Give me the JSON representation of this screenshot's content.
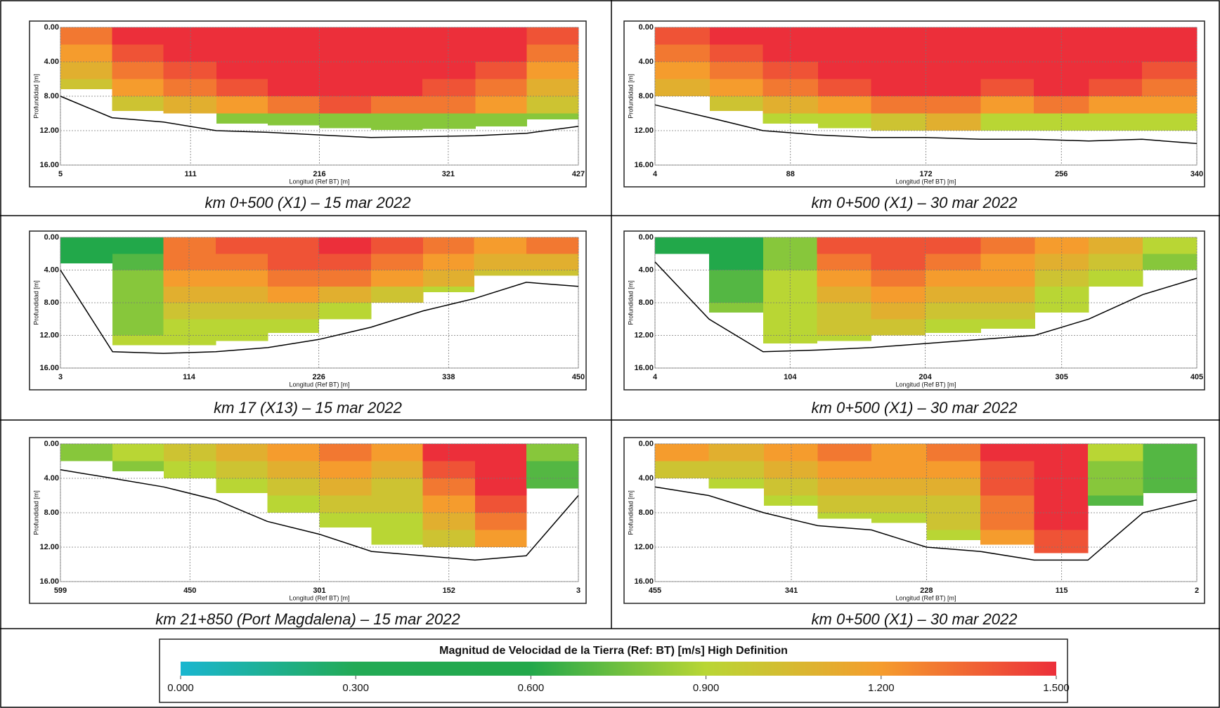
{
  "chart_data": [
    {
      "type": "heatmap",
      "caption": "km 0+500 (X1) – 15 mar 2022",
      "ylabel": "Profundidad [m]",
      "xlabel": "Longitud (Ref BT) [m]",
      "xlim": [
        5,
        427
      ],
      "xticks": [
        5,
        111,
        216,
        321,
        427
      ],
      "ylim": [
        0,
        16
      ],
      "invert_y": true,
      "yticks": [
        {
          "value": 0,
          "label": "0.00"
        },
        {
          "value": 4,
          "label": "4.00"
        },
        {
          "value": 8,
          "label": "8.00"
        },
        {
          "value": 12,
          "label": "12.00"
        },
        {
          "value": 16,
          "label": "16.00"
        }
      ],
      "x": [
        5,
        47,
        89,
        132,
        174,
        216,
        258,
        300,
        343,
        385,
        427
      ],
      "bed": [
        8,
        10.5,
        11,
        12,
        12.2,
        12.5,
        12.8,
        12.7,
        12.6,
        12.3,
        11.5
      ],
      "y_edges": [
        0,
        2,
        4,
        6,
        8,
        10,
        12,
        14
      ],
      "z": [
        [
          1.3,
          1.5,
          1.5,
          1.5,
          1.5,
          1.5,
          1.5,
          1.5,
          1.5,
          1.4
        ],
        [
          1.2,
          1.4,
          1.5,
          1.5,
          1.5,
          1.5,
          1.5,
          1.5,
          1.5,
          1.3
        ],
        [
          1.1,
          1.3,
          1.4,
          1.5,
          1.5,
          1.5,
          1.5,
          1.5,
          1.4,
          1.2
        ],
        [
          1.0,
          1.2,
          1.3,
          1.4,
          1.5,
          1.5,
          1.5,
          1.4,
          1.3,
          1.1
        ],
        [
          null,
          1.0,
          1.1,
          1.2,
          1.3,
          1.4,
          1.3,
          1.3,
          1.2,
          1.0
        ],
        [
          null,
          null,
          null,
          0.8,
          0.8,
          0.8,
          0.8,
          0.8,
          0.8,
          0.8
        ],
        [
          null,
          null,
          null,
          null,
          null,
          null,
          null,
          null,
          null,
          null
        ]
      ]
    },
    {
      "type": "heatmap",
      "caption": "km 0+500 (X1) – 30 mar 2022",
      "ylabel": "Profundidad [m]",
      "xlabel": "Longitud (Ref BT) [m]",
      "xlim": [
        4,
        340
      ],
      "xticks": [
        4,
        88,
        172,
        256,
        340
      ],
      "ylim": [
        0,
        16
      ],
      "invert_y": true,
      "yticks": [
        {
          "value": 0,
          "label": "0.00"
        },
        {
          "value": 4,
          "label": "4.00"
        },
        {
          "value": 8,
          "label": "8.00"
        },
        {
          "value": 12,
          "label": "12.00"
        },
        {
          "value": 16,
          "label": "16.00"
        }
      ],
      "x": [
        4,
        38,
        71,
        105,
        138,
        172,
        206,
        239,
        273,
        306,
        340
      ],
      "bed": [
        9,
        10.5,
        12,
        12.5,
        12.8,
        12.8,
        13,
        13,
        13.2,
        13,
        13.5
      ],
      "y_edges": [
        0,
        2,
        4,
        6,
        8,
        10,
        12,
        14
      ],
      "z": [
        [
          1.4,
          1.5,
          1.5,
          1.5,
          1.5,
          1.5,
          1.5,
          1.5,
          1.5,
          1.5
        ],
        [
          1.3,
          1.4,
          1.5,
          1.5,
          1.5,
          1.5,
          1.5,
          1.5,
          1.5,
          1.5
        ],
        [
          1.2,
          1.3,
          1.4,
          1.5,
          1.5,
          1.5,
          1.5,
          1.5,
          1.5,
          1.4
        ],
        [
          1.1,
          1.2,
          1.3,
          1.4,
          1.5,
          1.5,
          1.4,
          1.5,
          1.4,
          1.3
        ],
        [
          null,
          1.0,
          1.1,
          1.2,
          1.3,
          1.3,
          1.2,
          1.3,
          1.2,
          1.2
        ],
        [
          null,
          null,
          0.9,
          0.9,
          1.0,
          1.1,
          0.9,
          0.9,
          0.9,
          0.9
        ],
        [
          null,
          null,
          null,
          null,
          null,
          null,
          null,
          null,
          null,
          null
        ]
      ]
    },
    {
      "type": "heatmap",
      "caption": "km 17 (X13) – 15 mar 2022",
      "ylabel": "Profundidad [m]",
      "xlabel": "Longitud (Ref BT) [m]",
      "xlim": [
        3,
        450
      ],
      "xticks": [
        3,
        114,
        226,
        338,
        450
      ],
      "ylim": [
        0,
        16
      ],
      "invert_y": true,
      "yticks": [
        {
          "value": 0,
          "label": "0.00"
        },
        {
          "value": 4,
          "label": "4.00"
        },
        {
          "value": 8,
          "label": "8.00"
        },
        {
          "value": 12,
          "label": "12.00"
        },
        {
          "value": 16,
          "label": "16.00"
        }
      ],
      "x": [
        3,
        48,
        92,
        137,
        182,
        226,
        271,
        316,
        360,
        405,
        450
      ],
      "bed": [
        4,
        14,
        14.2,
        14,
        13.5,
        12.5,
        11,
        9,
        7.5,
        5.5,
        6
      ],
      "y_edges": [
        0,
        2,
        4,
        6,
        8,
        10,
        12,
        14
      ],
      "z": [
        [
          0.6,
          0.6,
          1.3,
          1.4,
          1.4,
          1.5,
          1.4,
          1.3,
          1.2,
          1.3
        ],
        [
          0.6,
          0.7,
          1.3,
          1.3,
          1.4,
          1.4,
          1.3,
          1.2,
          1.1,
          1.1
        ],
        [
          null,
          0.8,
          1.2,
          1.2,
          1.3,
          1.3,
          1.2,
          1.1,
          1.0,
          1.0
        ],
        [
          null,
          0.8,
          1.1,
          1.1,
          1.2,
          1.1,
          1.0,
          0.9,
          null,
          null
        ],
        [
          null,
          0.8,
          1.0,
          1.0,
          1.0,
          0.9,
          null,
          null,
          null,
          null
        ],
        [
          null,
          0.8,
          0.9,
          0.9,
          0.9,
          null,
          null,
          null,
          null,
          null
        ],
        [
          null,
          0.9,
          0.9,
          0.9,
          null,
          null,
          null,
          null,
          null,
          null
        ]
      ]
    },
    {
      "type": "heatmap",
      "caption": "km 0+500 (X1) – 30 mar 2022",
      "ylabel": "Profundidad [m]",
      "xlabel": "Longitud (Ref BT) [m]",
      "xlim": [
        4,
        405
      ],
      "xticks": [
        4,
        104,
        204,
        305,
        405
      ],
      "ylim": [
        0,
        16
      ],
      "invert_y": true,
      "yticks": [
        {
          "value": 0,
          "label": "0.00"
        },
        {
          "value": 4,
          "label": "4.00"
        },
        {
          "value": 8,
          "label": "8.00"
        },
        {
          "value": 12,
          "label": "12.00"
        },
        {
          "value": 16,
          "label": "16.00"
        }
      ],
      "x": [
        4,
        44,
        84,
        124,
        164,
        204,
        245,
        285,
        325,
        365,
        405
      ],
      "bed": [
        3,
        10,
        14,
        13.8,
        13.5,
        13,
        12.5,
        12,
        10,
        7,
        5
      ],
      "y_edges": [
        0,
        2,
        4,
        6,
        8,
        10,
        12,
        14
      ],
      "z": [
        [
          0.6,
          0.6,
          0.8,
          1.4,
          1.4,
          1.4,
          1.3,
          1.2,
          1.1,
          0.9
        ],
        [
          null,
          0.6,
          0.8,
          1.3,
          1.4,
          1.3,
          1.2,
          1.1,
          1.0,
          0.8
        ],
        [
          null,
          0.7,
          0.9,
          1.2,
          1.3,
          1.2,
          1.2,
          1.0,
          0.9,
          null
        ],
        [
          null,
          0.7,
          0.9,
          1.1,
          1.2,
          1.1,
          1.1,
          0.9,
          null,
          null
        ],
        [
          null,
          0.8,
          0.9,
          1.0,
          1.1,
          1.0,
          1.0,
          0.9,
          null,
          null
        ],
        [
          null,
          null,
          0.9,
          1.0,
          1.0,
          0.9,
          0.9,
          null,
          null,
          null
        ],
        [
          null,
          null,
          0.9,
          0.9,
          null,
          null,
          null,
          null,
          null,
          null
        ]
      ]
    },
    {
      "type": "heatmap",
      "caption": "km 21+850 (Port Magdalena) – 15 mar 2022",
      "ylabel": "Profundidad [m]",
      "xlabel": "Longitud (Ref BT) [m]",
      "xlim": [
        599,
        3
      ],
      "xticks": [
        599,
        450,
        301,
        152,
        3
      ],
      "ylim": [
        0,
        16
      ],
      "invert_y": true,
      "yticks": [
        {
          "value": 0,
          "label": "0.00"
        },
        {
          "value": 4,
          "label": "4.00"
        },
        {
          "value": 8,
          "label": "8.00"
        },
        {
          "value": 12,
          "label": "12.00"
        },
        {
          "value": 16,
          "label": "16.00"
        }
      ],
      "x": [
        599,
        539,
        480,
        420,
        361,
        301,
        241,
        182,
        122,
        63,
        3
      ],
      "bed": [
        3,
        4,
        5,
        6.5,
        9,
        10.5,
        12.5,
        13,
        13.5,
        13,
        6
      ],
      "y_edges": [
        0,
        2,
        4,
        6,
        8,
        10,
        12,
        14
      ],
      "z": [
        [
          0.8,
          0.9,
          1.0,
          1.1,
          1.2,
          1.3,
          1.2,
          1.5,
          1.5,
          0.8
        ],
        [
          null,
          0.8,
          0.9,
          1.0,
          1.1,
          1.2,
          1.1,
          1.4,
          1.5,
          0.7
        ],
        [
          null,
          null,
          null,
          0.9,
          1.0,
          1.1,
          1.0,
          1.3,
          1.5,
          0.7
        ],
        [
          null,
          null,
          null,
          null,
          0.9,
          1.0,
          1.0,
          1.2,
          1.4,
          null
        ],
        [
          null,
          null,
          null,
          null,
          null,
          0.9,
          0.9,
          1.1,
          1.3,
          null
        ],
        [
          null,
          null,
          null,
          null,
          null,
          null,
          0.9,
          1.0,
          1.2,
          null
        ],
        [
          null,
          null,
          null,
          null,
          null,
          null,
          null,
          null,
          null,
          null
        ]
      ]
    },
    {
      "type": "heatmap",
      "caption": "km 0+500 (X1) – 30 mar 2022",
      "ylabel": "Profundidad [m]",
      "xlabel": "Longitud (Ref BT) [m]",
      "xlim": [
        455,
        2
      ],
      "xticks": [
        455,
        341,
        228,
        115,
        2
      ],
      "ylim": [
        0,
        16
      ],
      "invert_y": true,
      "yticks": [
        {
          "value": 0,
          "label": "0.00"
        },
        {
          "value": 4,
          "label": "4.00"
        },
        {
          "value": 8,
          "label": "8.00"
        },
        {
          "value": 12,
          "label": "12.00"
        },
        {
          "value": 16,
          "label": "16.00"
        }
      ],
      "x": [
        455,
        410,
        364,
        319,
        274,
        228,
        183,
        138,
        93,
        47,
        2
      ],
      "bed": [
        5,
        6,
        8,
        9.5,
        10,
        12,
        12.5,
        13.5,
        13.5,
        8,
        6.5
      ],
      "y_edges": [
        0,
        2,
        4,
        6,
        8,
        10,
        12,
        14
      ],
      "z": [
        [
          1.2,
          1.1,
          1.2,
          1.3,
          1.2,
          1.3,
          1.5,
          1.5,
          0.9,
          0.7
        ],
        [
          1.0,
          1.0,
          1.1,
          1.2,
          1.2,
          1.2,
          1.4,
          1.5,
          0.8,
          0.7
        ],
        [
          null,
          0.9,
          1.0,
          1.1,
          1.1,
          1.1,
          1.4,
          1.5,
          0.8,
          0.7
        ],
        [
          null,
          null,
          0.9,
          1.0,
          1.0,
          1.0,
          1.3,
          1.5,
          0.7,
          null
        ],
        [
          null,
          null,
          null,
          0.9,
          0.9,
          1.0,
          1.3,
          1.5,
          null,
          null
        ],
        [
          null,
          null,
          null,
          null,
          null,
          0.9,
          1.2,
          1.4,
          null,
          null
        ],
        [
          null,
          null,
          null,
          null,
          null,
          null,
          null,
          1.4,
          null,
          null
        ]
      ]
    },
    {
      "type": "colorbar",
      "title": "Magnitud de Velocidad de la Tierra (Ref: BT) [m/s] High Definition",
      "xlim": [
        0,
        1.5
      ],
      "xticks": [
        {
          "value": 0,
          "label": "0.000"
        },
        {
          "value": 0.3,
          "label": "0.300"
        },
        {
          "value": 0.6,
          "label": "0.600"
        },
        {
          "value": 0.9,
          "label": "0.900"
        },
        {
          "value": 1.2,
          "label": "1.200"
        },
        {
          "value": 1.5,
          "label": "1.500"
        }
      ],
      "colors": [
        "#1ab6d0",
        "#22aa55",
        "#22a84a",
        "#b9d634",
        "#f59c2d",
        "#ec2f3a"
      ]
    }
  ]
}
